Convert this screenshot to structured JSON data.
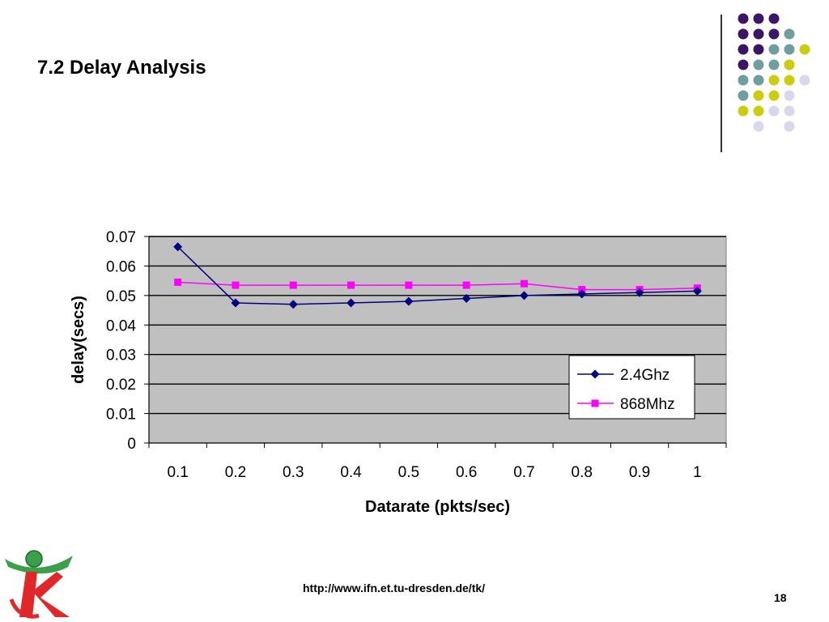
{
  "slide": {
    "title": "7.2 Delay Analysis",
    "footer_url": "http://www.ifn.et.tu-dresden.de/tk/",
    "page_number": "18"
  },
  "colors": {
    "plot_bg": "#c0c0c0",
    "series_24": "#000080",
    "series_868": "#ff00ff",
    "dot_purple": "#3d1566",
    "dot_teal": "#6f9e9e",
    "dot_yellow": "#cccc10",
    "dot_lavender": "#d8d8ec"
  },
  "chart_data": {
    "type": "line",
    "title": "",
    "xlabel": "Datarate (pkts/sec)",
    "ylabel": "delay(secs)",
    "categories": [
      "0.1",
      "0.2",
      "0.3",
      "0.4",
      "0.5",
      "0.6",
      "0.7",
      "0.8",
      "0.9",
      "1"
    ],
    "y_ticks": [
      "0",
      "0.01",
      "0.02",
      "0.03",
      "0.04",
      "0.05",
      "0.06",
      "0.07"
    ],
    "ylim": [
      0,
      0.07
    ],
    "grid": true,
    "legend_position": "lower-right",
    "series": [
      {
        "name": "2.4Ghz",
        "marker": "diamond",
        "values": [
          0.0665,
          0.0475,
          0.047,
          0.0475,
          0.048,
          0.049,
          0.05,
          0.0505,
          0.051,
          0.0515
        ]
      },
      {
        "name": "868Mhz",
        "marker": "square",
        "values": [
          0.0545,
          0.0535,
          0.0535,
          0.0535,
          0.0535,
          0.0535,
          0.054,
          0.052,
          0.052,
          0.0525
        ]
      }
    ]
  }
}
